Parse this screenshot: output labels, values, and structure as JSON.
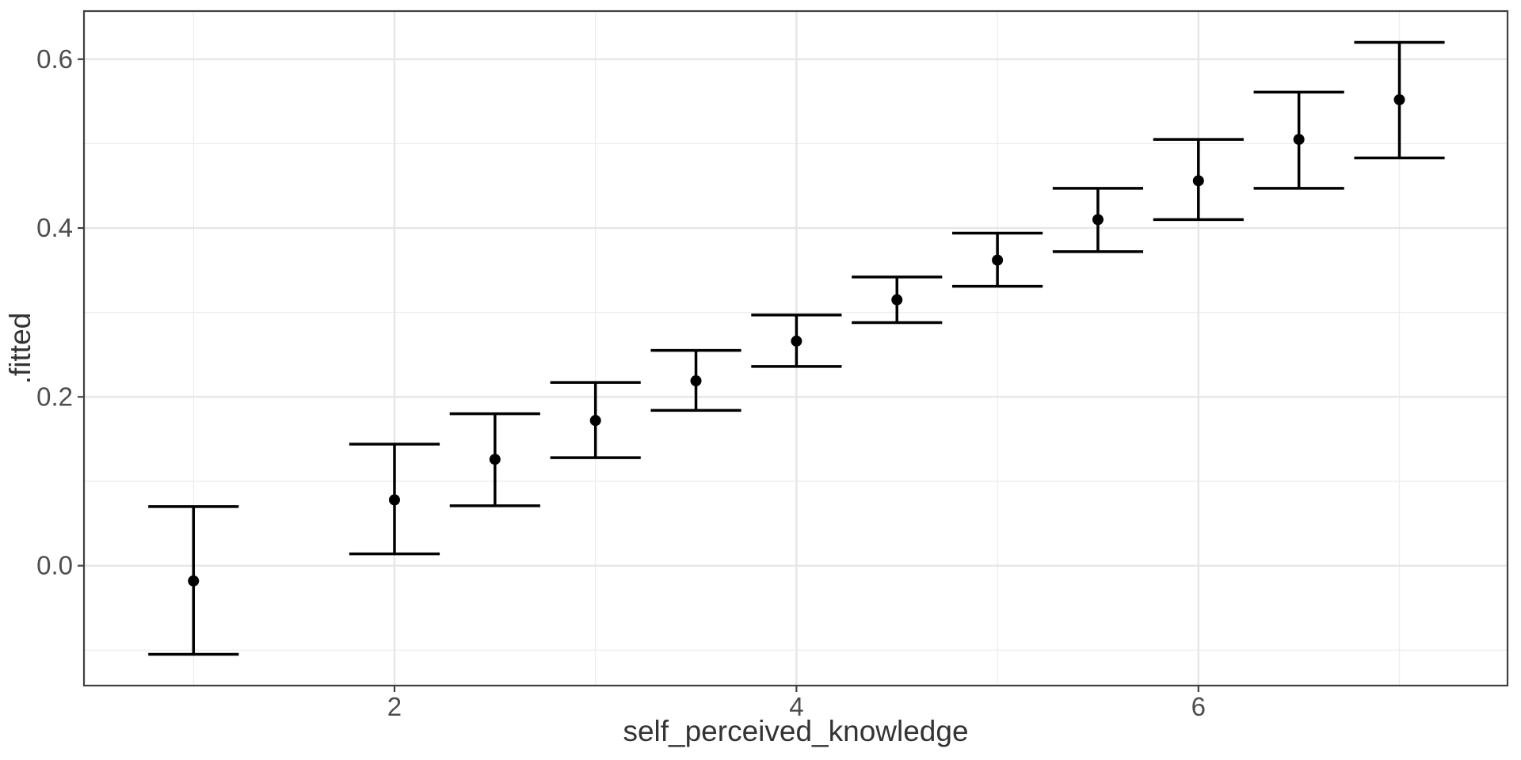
{
  "chart_data": {
    "type": "scatter",
    "subtype": "point-with-errorbars",
    "title": "",
    "xlabel": "self_perceived_knowledge",
    "ylabel": ".fitted",
    "xlim": [
      0.455,
      7.538
    ],
    "ylim": [
      -0.142,
      0.657
    ],
    "x_major_ticks": [
      2,
      4,
      6
    ],
    "x_tick_labels": [
      "2",
      "4",
      "6"
    ],
    "x_minor_breaks": [
      1,
      3,
      5,
      7
    ],
    "y_major_ticks": [
      0.0,
      0.2,
      0.4,
      0.6
    ],
    "y_tick_labels": [
      "0.0",
      "0.2",
      "0.4",
      "0.6"
    ],
    "y_minor_breaks": [
      -0.1,
      0.1,
      0.3,
      0.5
    ],
    "grid": true,
    "legend": "none",
    "errorbar_cap_width_units": 0.45,
    "points": [
      {
        "x": 1.0,
        "fitted": -0.018,
        "lower": -0.105,
        "upper": 0.07
      },
      {
        "x": 2.0,
        "fitted": 0.078,
        "lower": 0.014,
        "upper": 0.144
      },
      {
        "x": 2.5,
        "fitted": 0.126,
        "lower": 0.071,
        "upper": 0.18
      },
      {
        "x": 3.0,
        "fitted": 0.172,
        "lower": 0.128,
        "upper": 0.217
      },
      {
        "x": 3.5,
        "fitted": 0.219,
        "lower": 0.184,
        "upper": 0.255
      },
      {
        "x": 4.0,
        "fitted": 0.266,
        "lower": 0.236,
        "upper": 0.297
      },
      {
        "x": 4.5,
        "fitted": 0.315,
        "lower": 0.288,
        "upper": 0.342
      },
      {
        "x": 5.0,
        "fitted": 0.362,
        "lower": 0.331,
        "upper": 0.394
      },
      {
        "x": 5.5,
        "fitted": 0.41,
        "lower": 0.372,
        "upper": 0.447
      },
      {
        "x": 6.0,
        "fitted": 0.456,
        "lower": 0.41,
        "upper": 0.505
      },
      {
        "x": 6.5,
        "fitted": 0.505,
        "lower": 0.447,
        "upper": 0.561
      },
      {
        "x": 7.0,
        "fitted": 0.552,
        "lower": 0.483,
        "upper": 0.62
      }
    ],
    "colors": {
      "background": "#ffffff",
      "panel_background": "#ffffff",
      "panel_border": "#404040",
      "grid_major": "#e6e6e6",
      "grid_minor": "#ededed",
      "point": "#000000",
      "errorbar": "#000000",
      "tick_mark": "#404040",
      "axis_text": "#4d4d4d",
      "axis_title": "#333333"
    }
  }
}
